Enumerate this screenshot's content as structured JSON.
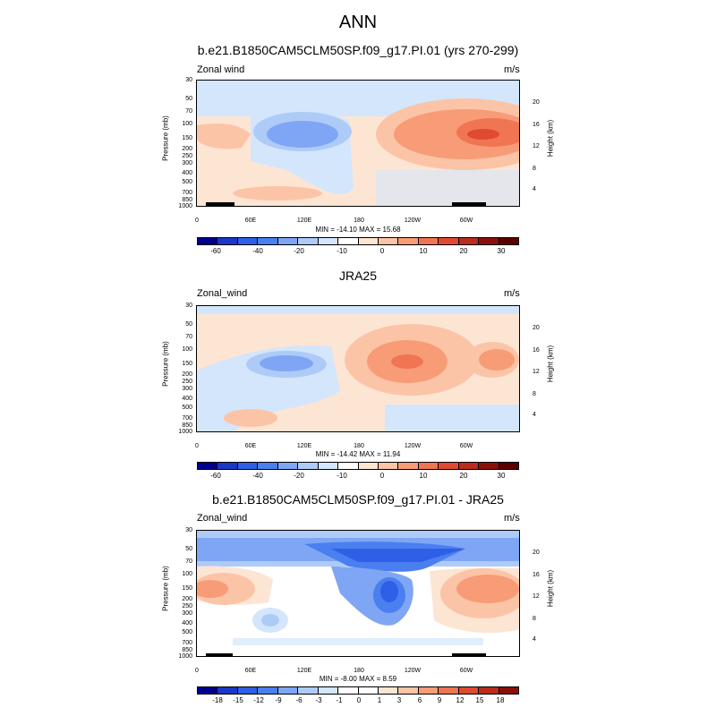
{
  "main_title": "ANN",
  "panels": [
    {
      "title": "b.e21.B1850CAM5CLM50SP.f09_g17.PI.01 (yrs 270-299)",
      "left_label": "Zonal wind",
      "right_label": "m/s",
      "stats": "MIN = -14.10  MAX =  15.68",
      "colorbar_labels": [
        "-60",
        "-40",
        "-20",
        "-10",
        "0",
        "10",
        "20",
        "30"
      ]
    },
    {
      "title": "JRA25",
      "left_label": "Zonal_wind",
      "right_label": "m/s",
      "stats": "MIN = -14.42  MAX =  11.94",
      "colorbar_labels": [
        "-60",
        "-40",
        "-20",
        "-10",
        "0",
        "10",
        "20",
        "30"
      ]
    },
    {
      "title": "b.e21.B1850CAM5CLM50SP.f09_g17.PI.01 - JRA25",
      "left_label": "Zonal_wind",
      "right_label": "m/s",
      "stats": "MIN =  -8.00  MAX =   8.59",
      "colorbar_labels": [
        "-18",
        "-15",
        "-12",
        "-9",
        "-6",
        "-3",
        "-1",
        "0",
        "1",
        "3",
        "6",
        "9",
        "12",
        "15",
        "18"
      ]
    }
  ],
  "axes": {
    "ylabel": "Pressure (mb)",
    "y2label": "Height (km)",
    "yticks": [
      "30",
      "50",
      "70",
      "100",
      "150",
      "200",
      "250",
      "300",
      "400",
      "500",
      "700",
      "850",
      "1000"
    ],
    "hticks": [
      "20",
      "16",
      "12",
      "8",
      "4"
    ],
    "xticks": [
      "0",
      "60E",
      "120E",
      "180",
      "120W",
      "60W"
    ]
  },
  "chart_data": [
    {
      "type": "heatmap",
      "title": "b.e21.B1850CAM5CLM50SP.f09_g17.PI.01 (yrs 270-299)",
      "variable": "Zonal wind",
      "units": "m/s",
      "x": [
        "0",
        "60E",
        "120E",
        "180",
        "120W",
        "60W"
      ],
      "y": [
        30,
        50,
        70,
        100,
        150,
        200,
        250,
        300,
        400,
        500,
        700,
        850,
        1000
      ],
      "min": -14.1,
      "max": 15.68,
      "levels": [
        -60,
        -50,
        -40,
        -30,
        -20,
        -15,
        -10,
        -5,
        0,
        5,
        10,
        15,
        20,
        25,
        30,
        35
      ],
      "colors": [
        "#00008f",
        "#1c36c7",
        "#2f5fe6",
        "#4a7ff0",
        "#7fa6f5",
        "#aecbf8",
        "#d3e6fc",
        "#ffffff",
        "#fde5d4",
        "#fcc4a6",
        "#f79c77",
        "#f07552",
        "#e04a30",
        "#bc2b1b",
        "#8b0f0a",
        "#5a0000"
      ]
    },
    {
      "type": "heatmap",
      "title": "JRA25",
      "variable": "Zonal_wind",
      "units": "m/s",
      "x": [
        "0",
        "60E",
        "120E",
        "180",
        "120W",
        "60W"
      ],
      "y": [
        30,
        50,
        70,
        100,
        150,
        200,
        250,
        300,
        400,
        500,
        700,
        850,
        1000
      ],
      "min": -14.42,
      "max": 11.94,
      "levels": [
        -60,
        -50,
        -40,
        -30,
        -20,
        -15,
        -10,
        -5,
        0,
        5,
        10,
        15,
        20,
        25,
        30,
        35
      ],
      "colors": [
        "#00008f",
        "#1c36c7",
        "#2f5fe6",
        "#4a7ff0",
        "#7fa6f5",
        "#aecbf8",
        "#d3e6fc",
        "#ffffff",
        "#fde5d4",
        "#fcc4a6",
        "#f79c77",
        "#f07552",
        "#e04a30",
        "#bc2b1b",
        "#8b0f0a",
        "#5a0000"
      ]
    },
    {
      "type": "heatmap",
      "title": "b.e21.B1850CAM5CLM50SP.f09_g17.PI.01 - JRA25",
      "variable": "Zonal_wind",
      "units": "m/s",
      "x": [
        "0",
        "60E",
        "120E",
        "180",
        "120W",
        "60W"
      ],
      "y": [
        30,
        50,
        70,
        100,
        150,
        200,
        250,
        300,
        400,
        500,
        700,
        850,
        1000
      ],
      "min": -8.0,
      "max": 8.59,
      "levels": [
        -18,
        -15,
        -12,
        -9,
        -6,
        -3,
        -1,
        0,
        1,
        3,
        6,
        9,
        12,
        15,
        18
      ],
      "colors": [
        "#00008f",
        "#1c36c7",
        "#2f5fe6",
        "#4a7ff0",
        "#7fa6f5",
        "#aecbf8",
        "#d3e6fc",
        "#ffffff",
        "#ffffff",
        "#fde5d4",
        "#fcc4a6",
        "#f79c77",
        "#f07552",
        "#e04a30",
        "#bc2b1b",
        "#8b0f0a"
      ]
    }
  ]
}
